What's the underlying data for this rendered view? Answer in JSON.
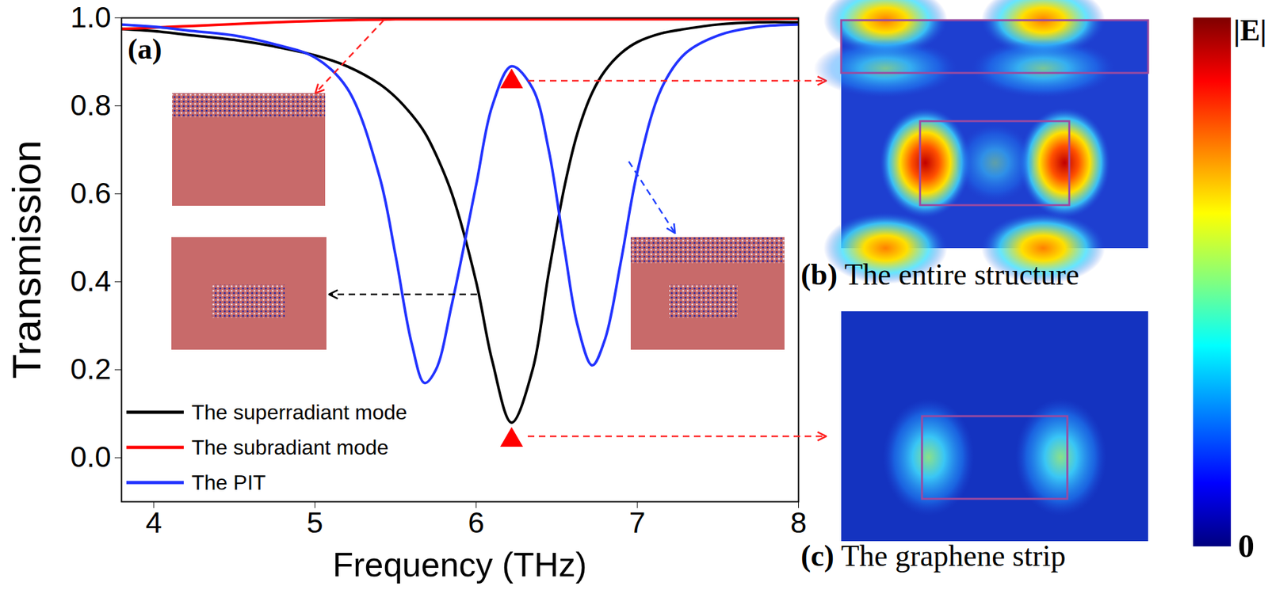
{
  "chart_data": {
    "type": "line",
    "panel_label": "(a)",
    "x_label": "Frequency (THz)",
    "y_label": "Transmission",
    "x": [
      3.8,
      4.0,
      4.25,
      4.5,
      4.75,
      5.0,
      5.2,
      5.4,
      5.5,
      5.6,
      5.68,
      5.75,
      5.85,
      6.0,
      6.1,
      6.22,
      6.35,
      6.45,
      6.55,
      6.63,
      6.72,
      6.8,
      6.9,
      7.0,
      7.15,
      7.3,
      7.5,
      7.75,
      8.0
    ],
    "series": [
      {
        "name": "The superradiant mode",
        "color": "#000000",
        "values": [
          0.975,
          0.97,
          0.96,
          0.95,
          0.935,
          0.915,
          0.89,
          0.85,
          0.82,
          0.78,
          0.74,
          0.69,
          0.6,
          0.4,
          0.22,
          0.08,
          0.2,
          0.42,
          0.62,
          0.74,
          0.83,
          0.88,
          0.92,
          0.945,
          0.965,
          0.975,
          0.985,
          0.99,
          0.99
        ]
      },
      {
        "name": "The subradiant mode",
        "color": "#ff0000",
        "values": [
          0.975,
          0.978,
          0.982,
          0.986,
          0.99,
          0.993,
          0.995,
          0.996,
          0.997,
          0.997,
          0.997,
          0.997,
          0.997,
          0.997,
          0.997,
          0.997,
          0.997,
          0.997,
          0.997,
          0.997,
          0.997,
          0.997,
          0.997,
          0.997,
          0.997,
          0.997,
          0.997,
          0.997,
          0.998
        ]
      },
      {
        "name": "The PIT",
        "color": "#2233ff",
        "values": [
          0.985,
          0.98,
          0.97,
          0.96,
          0.94,
          0.91,
          0.84,
          0.64,
          0.46,
          0.26,
          0.17,
          0.2,
          0.35,
          0.62,
          0.8,
          0.89,
          0.84,
          0.7,
          0.47,
          0.3,
          0.21,
          0.27,
          0.45,
          0.65,
          0.84,
          0.92,
          0.96,
          0.98,
          0.985
        ]
      }
    ],
    "highlight_points": {
      "x": [
        6.22,
        6.22
      ],
      "y": [
        0.855,
        0.04
      ],
      "color": "#ff0000",
      "marker": "triangle"
    },
    "xlim": [
      3.8,
      8
    ],
    "ylim": [
      -0.1,
      1.0
    ],
    "xticks": [
      4,
      5,
      6,
      7,
      8
    ],
    "yticks": [
      {
        "value": 0,
        "label": "0.0"
      },
      0.2,
      0.4,
      0.6,
      0.8,
      {
        "value": 1,
        "label": "1.0"
      }
    ],
    "legend": "lower left",
    "grid": false
  },
  "panels": [
    {
      "label": "(b)",
      "title": "The entire structure"
    },
    {
      "label": "(c)",
      "title": "The graphene strip"
    }
  ],
  "colorbar": {
    "label": "|E|",
    "ticks": [
      0
    ]
  }
}
